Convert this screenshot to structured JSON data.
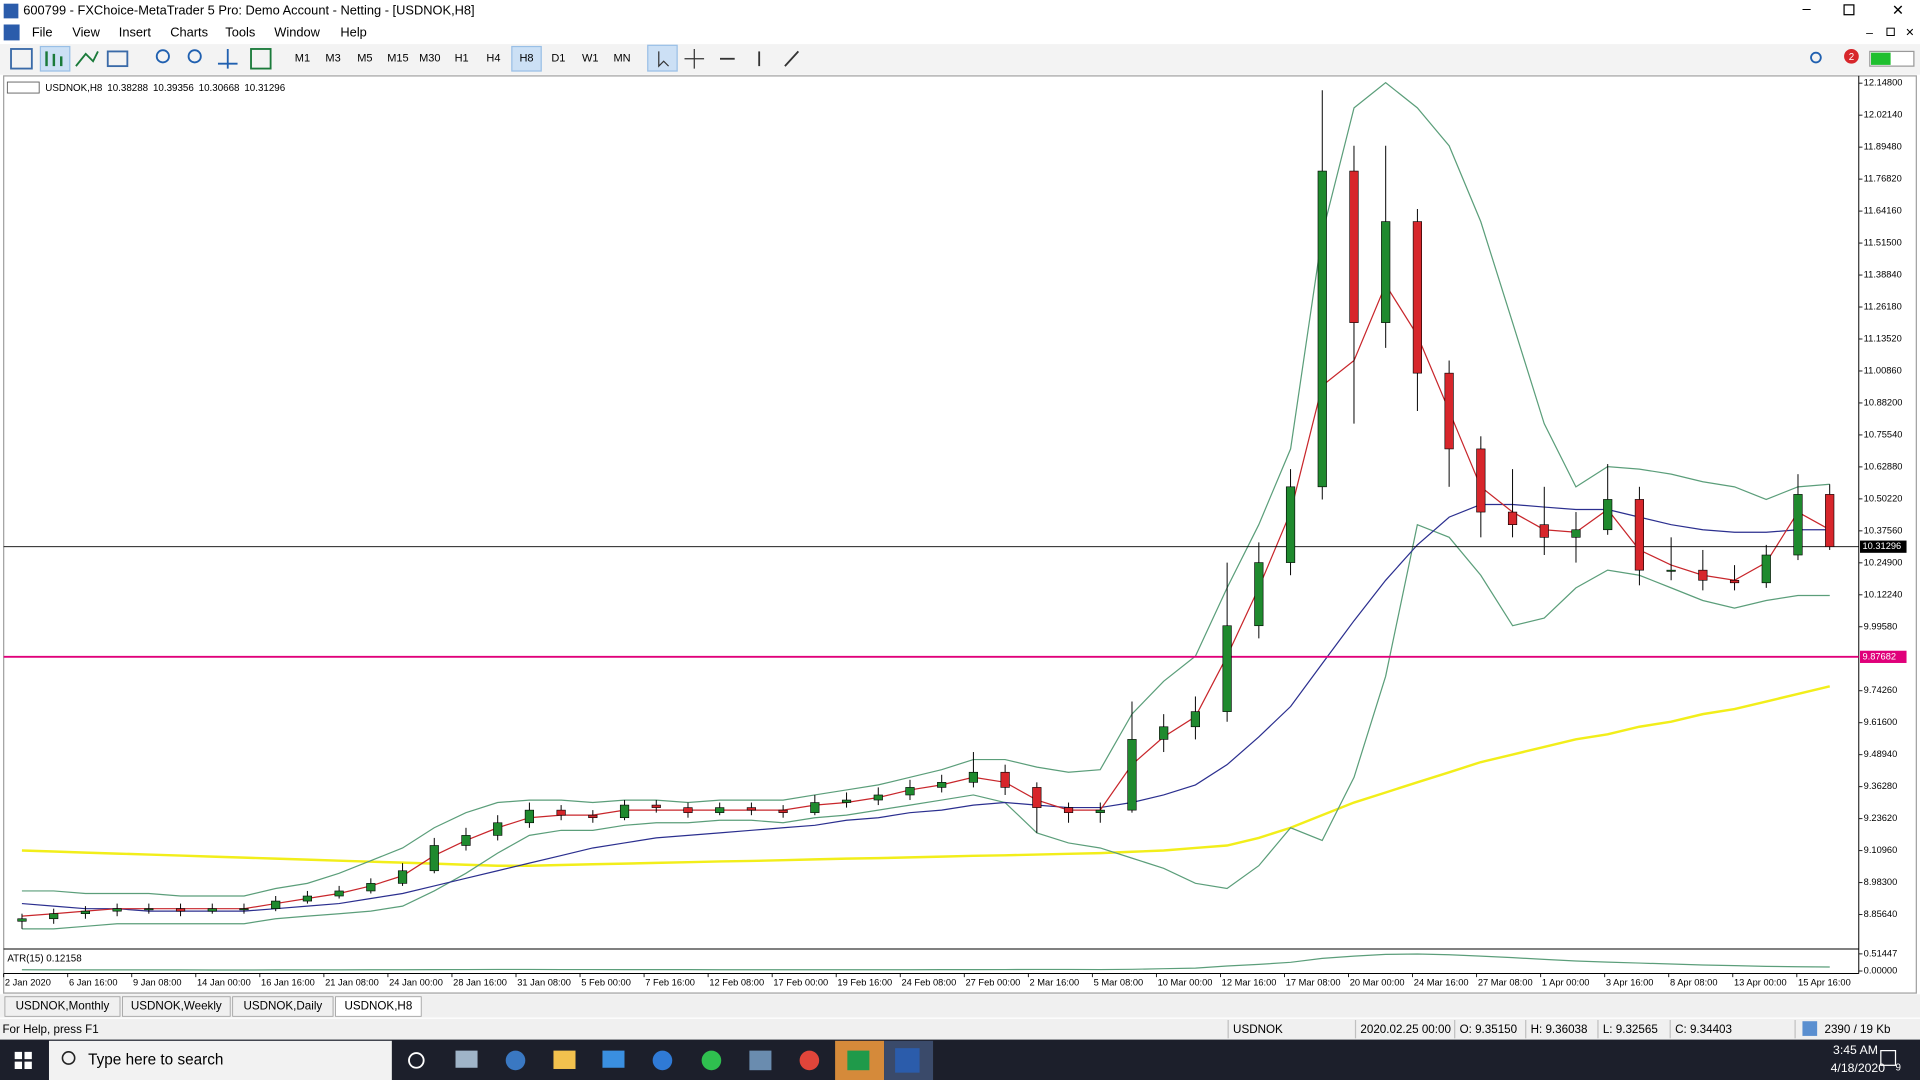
{
  "window": {
    "title": "600799 - FXChoice-MetaTrader 5 Pro: Demo Account - Netting - [USDNOK,H8]",
    "menu": [
      "File",
      "View",
      "Insert",
      "Charts",
      "Tools",
      "Window",
      "Help"
    ],
    "timeframes": [
      "M1",
      "M3",
      "M5",
      "M15",
      "M30",
      "H1",
      "H4",
      "H8",
      "D1",
      "W1",
      "MN"
    ],
    "badge": "2",
    "tabs": [
      "USDNOK,Monthly",
      "USDNOK,Weekly",
      "USDNOK,Daily",
      "USDNOK,H8"
    ],
    "status": {
      "help": "For Help, press F1",
      "symbol": "USDNOK",
      "time": "2020.02.25 00:00",
      "open": "O: 9.35150",
      "high": "H: 9.36038",
      "low": "L: 9.32565",
      "close": "C: 9.34403",
      "traffic": "2390 / 19 Kb"
    },
    "taskbar": {
      "search": "Type here to search",
      "time": "3:45 AM",
      "date": "4/18/2020",
      "notifications": "9"
    }
  },
  "chart_data": {
    "type": "candlestick",
    "symbol": "USDNOK,H8",
    "ohlc": [
      10.38288,
      10.39356,
      10.30668,
      10.31296
    ],
    "ylim": [
      8.73,
      12.167
    ],
    "yticks": [
      {
        "value": 12.148,
        "label": "12.14800"
      },
      {
        "value": 12.0214,
        "label": "12.02140"
      },
      {
        "value": 11.8948,
        "label": "11.89480"
      },
      {
        "value": 11.7682,
        "label": "11.76820"
      },
      {
        "value": 11.6416,
        "label": "11.64160"
      },
      {
        "value": 11.515,
        "label": "11.51500"
      },
      {
        "value": 11.3884,
        "label": "11.38840"
      },
      {
        "value": 11.2618,
        "label": "11.26180"
      },
      {
        "value": 11.1352,
        "label": "11.13520"
      },
      {
        "value": 11.0086,
        "label": "11.00860"
      },
      {
        "value": 10.882,
        "label": "10.88200"
      },
      {
        "value": 10.7554,
        "label": "10.75540"
      },
      {
        "value": 10.6288,
        "label": "10.62880"
      },
      {
        "value": 10.5022,
        "label": "10.50220"
      },
      {
        "value": 10.3756,
        "label": "10.37560"
      },
      {
        "value": 10.249,
        "label": "10.24900"
      },
      {
        "value": 10.1224,
        "label": "10.12240"
      },
      {
        "value": 9.9958,
        "label": "9.99580"
      },
      {
        "value": 9.7426,
        "label": "9.74260"
      },
      {
        "value": 9.616,
        "label": "9.61600"
      },
      {
        "value": 9.4894,
        "label": "9.48940"
      },
      {
        "value": 9.3628,
        "label": "9.36280"
      },
      {
        "value": 9.2362,
        "label": "9.23620"
      },
      {
        "value": 9.1096,
        "label": "9.10960"
      },
      {
        "value": 8.983,
        "label": "8.98300"
      },
      {
        "value": 8.8564,
        "label": "8.85640"
      }
    ],
    "x_labels": [
      "2 Jan 2020",
      "6 Jan 16:00",
      "9 Jan 08:00",
      "14 Jan 00:00",
      "16 Jan 16:00",
      "21 Jan 08:00",
      "24 Jan 00:00",
      "28 Jan 16:00",
      "31 Jan 08:00",
      "5 Feb 00:00",
      "7 Feb 16:00",
      "12 Feb 08:00",
      "17 Feb 00:00",
      "19 Feb 16:00",
      "24 Feb 08:00",
      "27 Feb 00:00",
      "2 Mar 16:00",
      "5 Mar 08:00",
      "10 Mar 00:00",
      "12 Mar 16:00",
      "17 Mar 08:00",
      "20 Mar 00:00",
      "24 Mar 16:00",
      "27 Mar 08:00",
      "1 Apr 00:00",
      "3 Apr 16:00",
      "8 Apr 08:00",
      "13 Apr 00:00",
      "15 Apr 16:00"
    ],
    "bid_line": 10.31296,
    "level_line": 9.87682,
    "level_color": "#e0007a",
    "up_color": "#1f8a2e",
    "down_color": "#d7262b",
    "candles": [
      [
        8.83,
        8.86,
        8.8,
        8.84
      ],
      [
        8.84,
        8.88,
        8.82,
        8.86
      ],
      [
        8.86,
        8.89,
        8.84,
        8.87
      ],
      [
        8.87,
        8.9,
        8.85,
        8.88
      ],
      [
        8.88,
        8.9,
        8.86,
        8.88
      ],
      [
        8.88,
        8.9,
        8.85,
        8.87
      ],
      [
        8.87,
        8.9,
        8.86,
        8.88
      ],
      [
        8.88,
        8.9,
        8.86,
        8.88
      ],
      [
        8.88,
        8.93,
        8.87,
        8.91
      ],
      [
        8.91,
        8.95,
        8.9,
        8.93
      ],
      [
        8.93,
        8.97,
        8.92,
        8.95
      ],
      [
        8.95,
        9.0,
        8.94,
        8.98
      ],
      [
        8.98,
        9.06,
        8.97,
        9.03
      ],
      [
        9.03,
        9.16,
        9.02,
        9.13
      ],
      [
        9.13,
        9.2,
        9.11,
        9.17
      ],
      [
        9.17,
        9.25,
        9.15,
        9.22
      ],
      [
        9.22,
        9.3,
        9.2,
        9.27
      ],
      [
        9.27,
        9.29,
        9.23,
        9.25
      ],
      [
        9.25,
        9.27,
        9.22,
        9.24
      ],
      [
        9.24,
        9.31,
        9.23,
        9.29
      ],
      [
        9.29,
        9.31,
        9.26,
        9.28
      ],
      [
        9.28,
        9.3,
        9.24,
        9.26
      ],
      [
        9.26,
        9.3,
        9.25,
        9.28
      ],
      [
        9.28,
        9.3,
        9.25,
        9.27
      ],
      [
        9.27,
        9.29,
        9.24,
        9.26
      ],
      [
        9.26,
        9.33,
        9.25,
        9.3
      ],
      [
        9.3,
        9.34,
        9.28,
        9.31
      ],
      [
        9.31,
        9.36,
        9.29,
        9.33
      ],
      [
        9.33,
        9.39,
        9.31,
        9.36
      ],
      [
        9.36,
        9.41,
        9.34,
        9.38
      ],
      [
        9.38,
        9.5,
        9.36,
        9.42
      ],
      [
        9.42,
        9.45,
        9.33,
        9.36
      ],
      [
        9.36,
        9.38,
        9.18,
        9.28
      ],
      [
        9.28,
        9.3,
        9.22,
        9.26
      ],
      [
        9.26,
        9.3,
        9.22,
        9.27
      ],
      [
        9.27,
        9.7,
        9.26,
        9.55
      ],
      [
        9.55,
        9.65,
        9.5,
        9.6
      ],
      [
        9.6,
        9.72,
        9.55,
        9.66
      ],
      [
        9.66,
        10.25,
        9.62,
        10.0
      ],
      [
        10.0,
        10.33,
        9.95,
        10.25
      ],
      [
        10.25,
        10.62,
        10.2,
        10.55
      ],
      [
        10.55,
        12.12,
        10.5,
        11.8
      ],
      [
        11.8,
        11.9,
        10.8,
        11.2
      ],
      [
        11.2,
        11.9,
        11.1,
        11.6
      ],
      [
        11.6,
        11.65,
        10.85,
        11.0
      ],
      [
        11.0,
        11.05,
        10.55,
        10.7
      ],
      [
        10.7,
        10.75,
        10.35,
        10.45
      ],
      [
        10.45,
        10.62,
        10.35,
        10.4
      ],
      [
        10.4,
        10.55,
        10.28,
        10.35
      ],
      [
        10.35,
        10.45,
        10.25,
        10.38
      ],
      [
        10.38,
        10.64,
        10.36,
        10.5
      ],
      [
        10.5,
        10.55,
        10.16,
        10.22
      ],
      [
        10.22,
        10.35,
        10.18,
        10.22
      ],
      [
        10.22,
        10.3,
        10.14,
        10.18
      ],
      [
        10.18,
        10.24,
        10.14,
        10.17
      ],
      [
        10.17,
        10.32,
        10.15,
        10.28
      ],
      [
        10.28,
        10.6,
        10.26,
        10.52
      ],
      [
        10.52,
        10.56,
        10.3,
        10.31296
      ]
    ],
    "series": [
      {
        "color": "#f2ee1a",
        "values": [
          9.11,
          9.106,
          9.102,
          9.098,
          9.094,
          9.09,
          9.086,
          9.082,
          9.078,
          9.074,
          9.07,
          9.066,
          9.062,
          9.058,
          9.054,
          9.05,
          9.05,
          9.053,
          9.056,
          9.058,
          9.061,
          9.064,
          9.067,
          9.069,
          9.072,
          9.075,
          9.078,
          9.08,
          9.083,
          9.086,
          9.089,
          9.091,
          9.094,
          9.097,
          9.1,
          9.105,
          9.11,
          9.12,
          9.13,
          9.16,
          9.2,
          9.25,
          9.3,
          9.34,
          9.38,
          9.42,
          9.46,
          9.49,
          9.52,
          9.55,
          9.57,
          9.6,
          9.62,
          9.65,
          9.67,
          9.7,
          9.73,
          9.76
        ]
      },
      {
        "color": "#5b9e7a",
        "values": [
          8.95,
          8.95,
          8.94,
          8.94,
          8.94,
          8.93,
          8.93,
          8.93,
          8.96,
          8.98,
          9.02,
          9.07,
          9.12,
          9.2,
          9.26,
          9.3,
          9.31,
          9.31,
          9.3,
          9.31,
          9.31,
          9.3,
          9.31,
          9.31,
          9.31,
          9.33,
          9.35,
          9.37,
          9.4,
          9.43,
          9.47,
          9.47,
          9.44,
          9.42,
          9.43,
          9.65,
          9.78,
          9.88,
          10.15,
          10.4,
          10.7,
          11.55,
          12.05,
          12.15,
          12.05,
          11.9,
          11.6,
          11.2,
          10.8,
          10.55,
          10.63,
          10.62,
          10.6,
          10.57,
          10.55,
          10.5,
          10.55,
          10.56
        ]
      },
      {
        "color": "#5b9e7a",
        "values": [
          8.8,
          8.8,
          8.81,
          8.82,
          8.82,
          8.82,
          8.82,
          8.82,
          8.84,
          8.85,
          8.86,
          8.87,
          8.89,
          8.95,
          9.02,
          9.1,
          9.17,
          9.19,
          9.19,
          9.21,
          9.22,
          9.22,
          9.23,
          9.23,
          9.22,
          9.24,
          9.25,
          9.27,
          9.29,
          9.31,
          9.33,
          9.3,
          9.18,
          9.14,
          9.12,
          9.08,
          9.04,
          8.98,
          8.96,
          9.05,
          9.2,
          9.15,
          9.4,
          9.8,
          10.4,
          10.35,
          10.2,
          10.0,
          10.03,
          10.15,
          10.22,
          10.2,
          10.15,
          10.1,
          10.07,
          10.1,
          10.12,
          10.12
        ]
      },
      {
        "color": "#2b2f8f",
        "values": [
          8.9,
          8.89,
          8.88,
          8.88,
          8.87,
          8.87,
          8.87,
          8.87,
          8.88,
          8.89,
          8.9,
          8.92,
          8.94,
          8.97,
          9.0,
          9.03,
          9.06,
          9.09,
          9.12,
          9.14,
          9.16,
          9.17,
          9.18,
          9.19,
          9.2,
          9.21,
          9.23,
          9.24,
          9.26,
          9.27,
          9.29,
          9.3,
          9.29,
          9.28,
          9.28,
          9.3,
          9.33,
          9.37,
          9.45,
          9.56,
          9.68,
          9.85,
          10.02,
          10.18,
          10.32,
          10.43,
          10.48,
          10.48,
          10.47,
          10.46,
          10.46,
          10.43,
          10.4,
          10.38,
          10.37,
          10.37,
          10.38,
          10.38
        ]
      },
      {
        "color": "#c8262b",
        "values": [
          8.85,
          8.86,
          8.87,
          8.88,
          8.88,
          8.88,
          8.88,
          8.88,
          8.9,
          8.92,
          8.94,
          8.97,
          9.01,
          9.09,
          9.15,
          9.2,
          9.24,
          9.25,
          9.25,
          9.27,
          9.27,
          9.27,
          9.27,
          9.27,
          9.27,
          9.29,
          9.3,
          9.32,
          9.35,
          9.37,
          9.4,
          9.38,
          9.31,
          9.27,
          9.27,
          9.45,
          9.56,
          9.64,
          9.88,
          10.15,
          10.45,
          10.95,
          11.05,
          11.35,
          11.15,
          10.85,
          10.55,
          10.45,
          10.38,
          10.37,
          10.46,
          10.3,
          10.24,
          10.2,
          10.18,
          10.25,
          10.45,
          10.38
        ]
      }
    ],
    "atr": {
      "label": "ATR(15) 0.12158",
      "color": "#5b9e7a",
      "ylim": [
        0,
        0.51447
      ],
      "yticks": [
        {
          "value": 0.51447,
          "label": "0.51447"
        },
        {
          "value": 0,
          "label": "0.00000"
        }
      ],
      "values": [
        0.035,
        0.034,
        0.033,
        0.033,
        0.032,
        0.032,
        0.031,
        0.031,
        0.032,
        0.033,
        0.034,
        0.035,
        0.037,
        0.042,
        0.045,
        0.046,
        0.046,
        0.045,
        0.043,
        0.042,
        0.041,
        0.039,
        0.038,
        0.037,
        0.036,
        0.036,
        0.036,
        0.037,
        0.038,
        0.039,
        0.042,
        0.044,
        0.047,
        0.046,
        0.045,
        0.05,
        0.07,
        0.09,
        0.15,
        0.2,
        0.26,
        0.38,
        0.45,
        0.5,
        0.51,
        0.49,
        0.45,
        0.4,
        0.35,
        0.3,
        0.27,
        0.24,
        0.21,
        0.18,
        0.16,
        0.14,
        0.13,
        0.12158
      ]
    }
  }
}
